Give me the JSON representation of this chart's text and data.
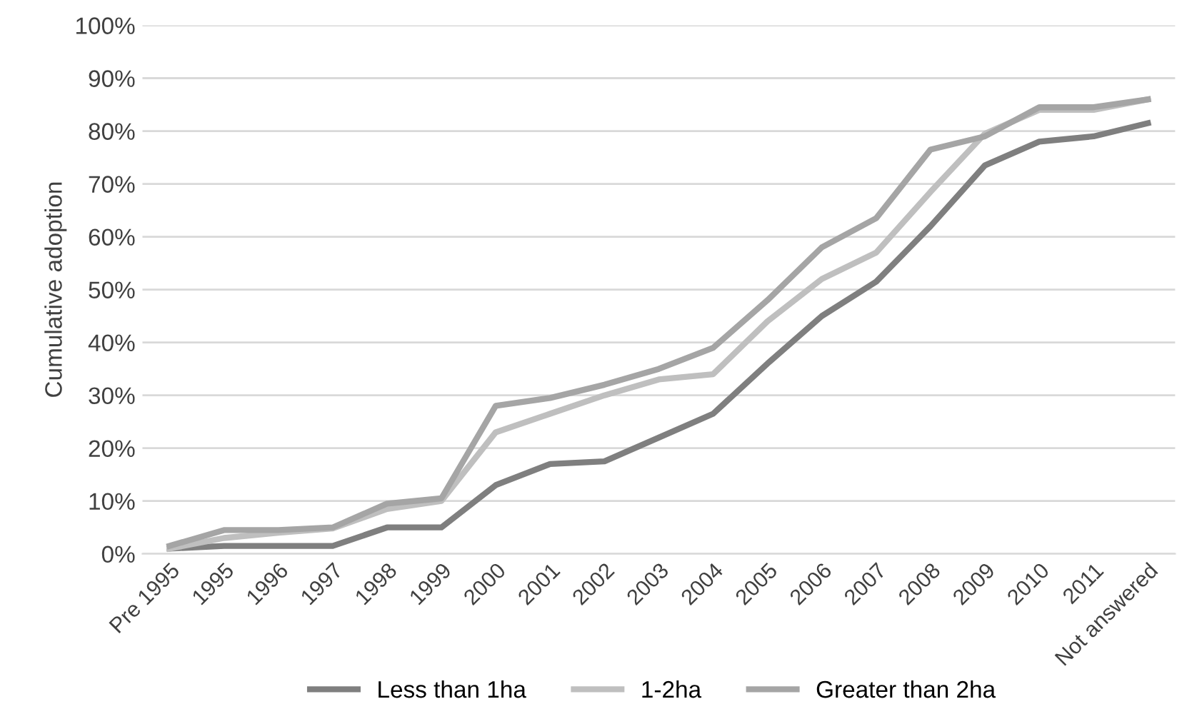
{
  "chart_data": {
    "type": "line",
    "ylabel": "Cumulative adoption",
    "categories": [
      "Pre 1995",
      "1995",
      "1996",
      "1997",
      "1998",
      "1999",
      "2000",
      "2001",
      "2002",
      "2003",
      "2004",
      "2005",
      "2006",
      "2007",
      "2008",
      "2009",
      "2010",
      "2011",
      "Not answered"
    ],
    "series": [
      {
        "name": "Less than 1ha",
        "color": "#7f7f7f",
        "values": [
          1,
          1.5,
          1.5,
          1.5,
          5,
          5,
          13,
          17,
          17.5,
          22,
          26.5,
          36,
          45,
          51.5,
          62,
          73.5,
          78,
          79,
          81.5
        ]
      },
      {
        "name": "1-2ha",
        "color": "#bfbfbf",
        "values": [
          1,
          3,
          4,
          4.8,
          8.5,
          10,
          23,
          26.5,
          30,
          33,
          34,
          44,
          52,
          57,
          68.5,
          79.5,
          84,
          84,
          86
        ]
      },
      {
        "name": "Greater than 2ha",
        "color": "#a5a5a5",
        "values": [
          1.5,
          4.5,
          4.5,
          5,
          9.5,
          10.5,
          28,
          29.5,
          32,
          35,
          39,
          48,
          58,
          63.5,
          76.5,
          79,
          84.5,
          84.5,
          86
        ]
      }
    ],
    "ylim": [
      0,
      100
    ],
    "yticks": [
      {
        "value": 0,
        "label": "0%"
      },
      {
        "value": 10,
        "label": "10%"
      },
      {
        "value": 20,
        "label": "20%"
      },
      {
        "value": 30,
        "label": "30%"
      },
      {
        "value": 40,
        "label": "40%"
      },
      {
        "value": 50,
        "label": "50%"
      },
      {
        "value": 60,
        "label": "60%"
      },
      {
        "value": 70,
        "label": "70%"
      },
      {
        "value": 80,
        "label": "80%"
      },
      {
        "value": 90,
        "label": "90%"
      },
      {
        "value": 100,
        "label": "100%"
      }
    ],
    "grid": "y",
    "legend": "bottom",
    "marker": "none",
    "line_style": "solid"
  }
}
